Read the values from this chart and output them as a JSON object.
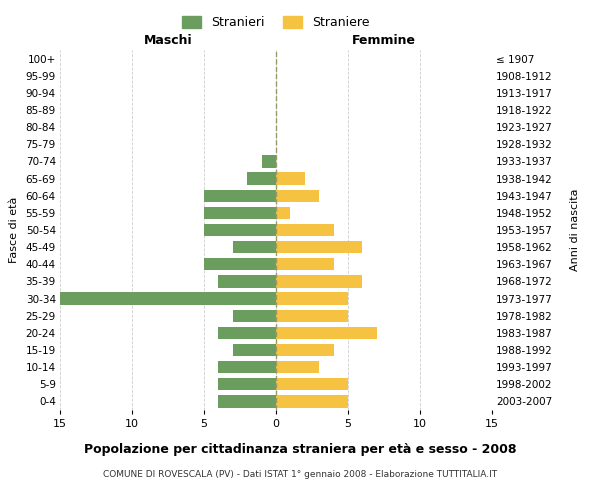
{
  "age_groups": [
    "0-4",
    "5-9",
    "10-14",
    "15-19",
    "20-24",
    "25-29",
    "30-34",
    "35-39",
    "40-44",
    "45-49",
    "50-54",
    "55-59",
    "60-64",
    "65-69",
    "70-74",
    "75-79",
    "80-84",
    "85-89",
    "90-94",
    "95-99",
    "100+"
  ],
  "birth_years": [
    "2003-2007",
    "1998-2002",
    "1993-1997",
    "1988-1992",
    "1983-1987",
    "1978-1982",
    "1973-1977",
    "1968-1972",
    "1963-1967",
    "1958-1962",
    "1953-1957",
    "1948-1952",
    "1943-1947",
    "1938-1942",
    "1933-1937",
    "1928-1932",
    "1923-1927",
    "1918-1922",
    "1913-1917",
    "1908-1912",
    "≤ 1907"
  ],
  "maschi": [
    4,
    4,
    4,
    3,
    4,
    3,
    15,
    4,
    5,
    3,
    5,
    5,
    5,
    2,
    1,
    0,
    0,
    0,
    0,
    0,
    0
  ],
  "femmine": [
    5,
    5,
    3,
    4,
    7,
    5,
    5,
    6,
    4,
    6,
    4,
    1,
    3,
    2,
    0,
    0,
    0,
    0,
    0,
    0,
    0
  ],
  "maschi_color": "#6b9e5e",
  "femmine_color": "#f5c242",
  "background_color": "#ffffff",
  "grid_color": "#cccccc",
  "title": "Popolazione per cittadinanza straniera per età e sesso - 2008",
  "subtitle": "COMUNE DI ROVESCALA (PV) - Dati ISTAT 1° gennaio 2008 - Elaborazione TUTTITALIA.IT",
  "xlabel_left": "Maschi",
  "xlabel_right": "Femmine",
  "ylabel_left": "Fasce di età",
  "ylabel_right": "Anni di nascita",
  "legend_maschi": "Stranieri",
  "legend_femmine": "Straniere",
  "xlim": 15
}
